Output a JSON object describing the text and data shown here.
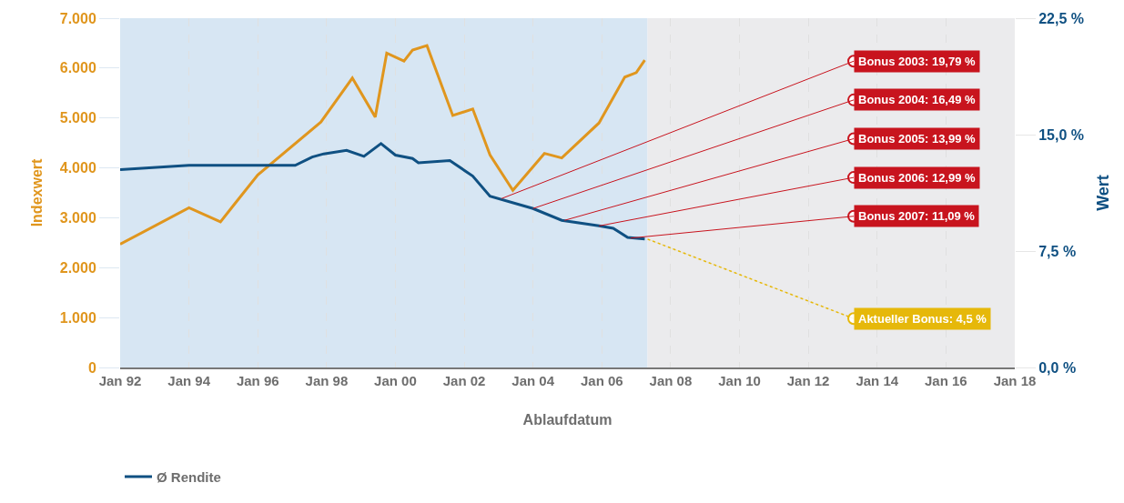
{
  "chart_data": {
    "type": "line",
    "xlabel": "Ablaufdatum",
    "ylabel": "Indexwert",
    "y2label": "Wert",
    "xlim": [
      "1992-01",
      "2018-01"
    ],
    "xticks": [
      {
        "value": "1992-01",
        "label": "Jan 92"
      },
      {
        "value": "1994-01",
        "label": "Jan 94"
      },
      {
        "value": "1996-01",
        "label": "Jan 96"
      },
      {
        "value": "1998-01",
        "label": "Jan 98"
      },
      {
        "value": "2000-01",
        "label": "Jan 00"
      },
      {
        "value": "2002-01",
        "label": "Jan 02"
      },
      {
        "value": "2004-01",
        "label": "Jan 04"
      },
      {
        "value": "2006-01",
        "label": "Jan 06"
      },
      {
        "value": "2008-01",
        "label": "Jan 08"
      },
      {
        "value": "2010-01",
        "label": "Jan 10"
      },
      {
        "value": "2012-01",
        "label": "Jan 12"
      },
      {
        "value": "2014-01",
        "label": "Jan 14"
      },
      {
        "value": "2016-01",
        "label": "Jan 16"
      },
      {
        "value": "2018-01",
        "label": "Jan 18"
      }
    ],
    "ylim": [
      0,
      7000
    ],
    "yticks": [
      0,
      {
        "value": 1000,
        "label": "1.000"
      },
      {
        "value": 2000,
        "label": "2.000"
      },
      {
        "value": 3000,
        "label": "3.000"
      },
      {
        "value": 4000,
        "label": "4.000"
      },
      {
        "value": 5000,
        "label": "5.000"
      },
      {
        "value": 6000,
        "label": "6.000"
      },
      {
        "value": 7000,
        "label": "7.000"
      }
    ],
    "y2lim": [
      0,
      22.5
    ],
    "y2ticks": [
      {
        "value": 0,
        "label": "0,0 %"
      },
      {
        "value": 7.5,
        "label": "7,5 %"
      },
      {
        "value": 15,
        "label": "15,0 %"
      },
      {
        "value": 22.5,
        "label": "22,5 %"
      }
    ],
    "series": [
      {
        "color": "#e0961e",
        "x": [
          "1992-01",
          "1994-01",
          "1994-12",
          "1996-01",
          "1997-11",
          "1998-10",
          "1999-06",
          "1999-10",
          "2000-04",
          "2000-07",
          "2000-12",
          "2001-09",
          "2002-04",
          "2002-10",
          "2003-06",
          "2004-05",
          "2004-11",
          "2005-12",
          "2006-09",
          "2007-01",
          "2007-04"
        ],
        "values": [
          2470,
          3200,
          2920,
          3860,
          4920,
          5800,
          5020,
          6300,
          6140,
          6360,
          6450,
          5050,
          5180,
          4260,
          3550,
          4290,
          4200,
          4900,
          5820,
          5910,
          6160
        ]
      },
      {
        "name": "Ø Rendite",
        "color": "#0f5082",
        "axis": "y2",
        "x": [
          "1992-01",
          "1994-01",
          "1997-02",
          "1997-08",
          "1997-12",
          "1998-08",
          "1999-02",
          "1999-08",
          "2000-01",
          "2000-07",
          "2000-09",
          "2001-08",
          "2002-04",
          "2002-10",
          "2004-01",
          "2004-11",
          "2005-12",
          "2006-05",
          "2006-10",
          "2007-04"
        ],
        "values": [
          12.74,
          13.02,
          13.02,
          13.56,
          13.76,
          13.99,
          13.6,
          14.42,
          13.68,
          13.46,
          13.18,
          13.33,
          12.33,
          11.03,
          10.24,
          9.48,
          9.12,
          8.97,
          8.38,
          8.28
        ]
      }
    ],
    "bands": [
      {
        "axis": "x",
        "from": "1992-01",
        "to": "2007-05",
        "color": "#d7e6f3"
      },
      {
        "axis": "x",
        "from": "2007-05",
        "to": "2018-01",
        "color": "#ebebed"
      }
    ],
    "annotations": [
      {
        "text": "Bonus 2003: 19,79 %",
        "x": "2003-02",
        "y": 3385
      },
      {
        "text": "Bonus 2004: 16,49 %",
        "x": "2004-01",
        "y": 3186
      },
      {
        "text": "Bonus 2005: 13,99 %",
        "x": "2004-12",
        "y": 2949
      },
      {
        "text": "Bonus 2006: 12,99 %",
        "x": "2005-12",
        "y": 2837
      },
      {
        "text": "Bonus 2007: 11,09 %",
        "x": "2006-11",
        "y": 2592
      },
      {
        "text": "Aktueller Bonus: 4,5 %",
        "x": "2007-05",
        "y": 2573
      }
    ],
    "grid": "x",
    "legend": "bottom",
    "line_style": "solid",
    "marker": "none"
  }
}
